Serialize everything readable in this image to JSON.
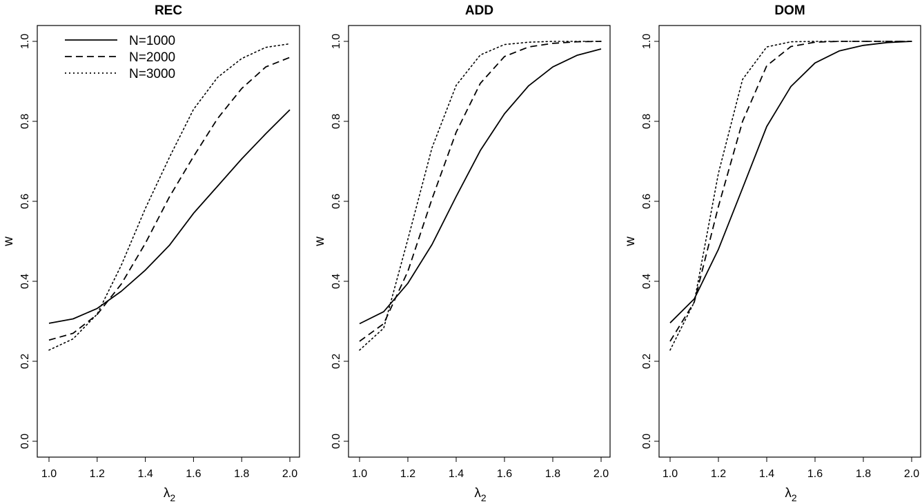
{
  "chart_data": [
    {
      "type": "line",
      "title": "REC",
      "xlabel": "λ",
      "xlabel_sub": "2",
      "ylabel": "w",
      "xlim": [
        1.0,
        2.0
      ],
      "ylim": [
        0.0,
        1.0
      ],
      "x_ticks": [
        "1.0",
        "1.2",
        "1.4",
        "1.6",
        "1.8",
        "2.0"
      ],
      "y_ticks": [
        "0.0",
        "0.2",
        "0.4",
        "0.6",
        "0.8",
        "1.0"
      ],
      "grid": false,
      "legend": {
        "position": "top-left",
        "entries": [
          {
            "label": "N=1000",
            "style": "solid"
          },
          {
            "label": "N=2000",
            "style": "dashed"
          },
          {
            "label": "N=3000",
            "style": "dotted"
          }
        ]
      },
      "x": [
        1.0,
        1.1,
        1.2,
        1.3,
        1.4,
        1.5,
        1.6,
        1.7,
        1.8,
        1.9,
        2.0
      ],
      "series": [
        {
          "name": "N=1000",
          "style": "solid",
          "values": [
            0.295,
            0.306,
            0.332,
            0.375,
            0.428,
            0.49,
            0.57,
            0.638,
            0.706,
            0.769,
            0.829
          ]
        },
        {
          "name": "N=2000",
          "style": "dashed",
          "values": [
            0.253,
            0.27,
            0.317,
            0.393,
            0.495,
            0.611,
            0.712,
            0.807,
            0.882,
            0.936,
            0.96
          ]
        },
        {
          "name": "N=3000",
          "style": "dotted",
          "values": [
            0.228,
            0.256,
            0.318,
            0.44,
            0.582,
            0.71,
            0.83,
            0.91,
            0.957,
            0.985,
            0.994
          ]
        }
      ]
    },
    {
      "type": "line",
      "title": "ADD",
      "xlabel": "λ",
      "xlabel_sub": "2",
      "ylabel": "w",
      "xlim": [
        1.0,
        2.0
      ],
      "ylim": [
        0.0,
        1.0
      ],
      "x_ticks": [
        "1.0",
        "1.2",
        "1.4",
        "1.6",
        "1.8",
        "2.0"
      ],
      "y_ticks": [
        "0.0",
        "0.2",
        "0.4",
        "0.6",
        "0.8",
        "1.0"
      ],
      "grid": false,
      "x": [
        1.0,
        1.1,
        1.2,
        1.3,
        1.4,
        1.5,
        1.6,
        1.7,
        1.8,
        1.9,
        2.0
      ],
      "series": [
        {
          "name": "N=1000",
          "style": "solid",
          "values": [
            0.294,
            0.324,
            0.395,
            0.492,
            0.612,
            0.727,
            0.819,
            0.889,
            0.936,
            0.965,
            0.981
          ]
        },
        {
          "name": "N=2000",
          "style": "dashed",
          "values": [
            0.25,
            0.294,
            0.425,
            0.606,
            0.773,
            0.895,
            0.962,
            0.986,
            0.995,
            0.999,
            1.0
          ]
        },
        {
          "name": "N=3000",
          "style": "dotted",
          "values": [
            0.228,
            0.283,
            0.505,
            0.734,
            0.89,
            0.966,
            0.992,
            0.998,
            1.0,
            1.0,
            1.0
          ]
        }
      ]
    },
    {
      "type": "line",
      "title": "DOM",
      "xlabel": "λ",
      "xlabel_sub": "2",
      "ylabel": "w",
      "xlim": [
        1.0,
        2.0
      ],
      "ylim": [
        0.0,
        1.0
      ],
      "x_ticks": [
        "1.0",
        "1.2",
        "1.4",
        "1.6",
        "1.8",
        "2.0"
      ],
      "y_ticks": [
        "0.0",
        "0.2",
        "0.4",
        "0.6",
        "0.8",
        "1.0"
      ],
      "grid": false,
      "x": [
        1.0,
        1.1,
        1.2,
        1.3,
        1.4,
        1.5,
        1.6,
        1.7,
        1.8,
        1.9,
        2.0
      ],
      "series": [
        {
          "name": "N=1000",
          "style": "solid",
          "values": [
            0.296,
            0.356,
            0.48,
            0.633,
            0.787,
            0.887,
            0.946,
            0.976,
            0.99,
            0.997,
            1.0
          ]
        },
        {
          "name": "N=2000",
          "style": "dashed",
          "values": [
            0.25,
            0.348,
            0.587,
            0.8,
            0.939,
            0.987,
            0.998,
            1.0,
            1.0,
            1.0,
            1.0
          ]
        },
        {
          "name": "N=3000",
          "style": "dotted",
          "values": [
            0.228,
            0.348,
            0.67,
            0.905,
            0.986,
            0.999,
            1.0,
            1.0,
            1.0,
            1.0,
            1.0
          ]
        }
      ]
    }
  ]
}
